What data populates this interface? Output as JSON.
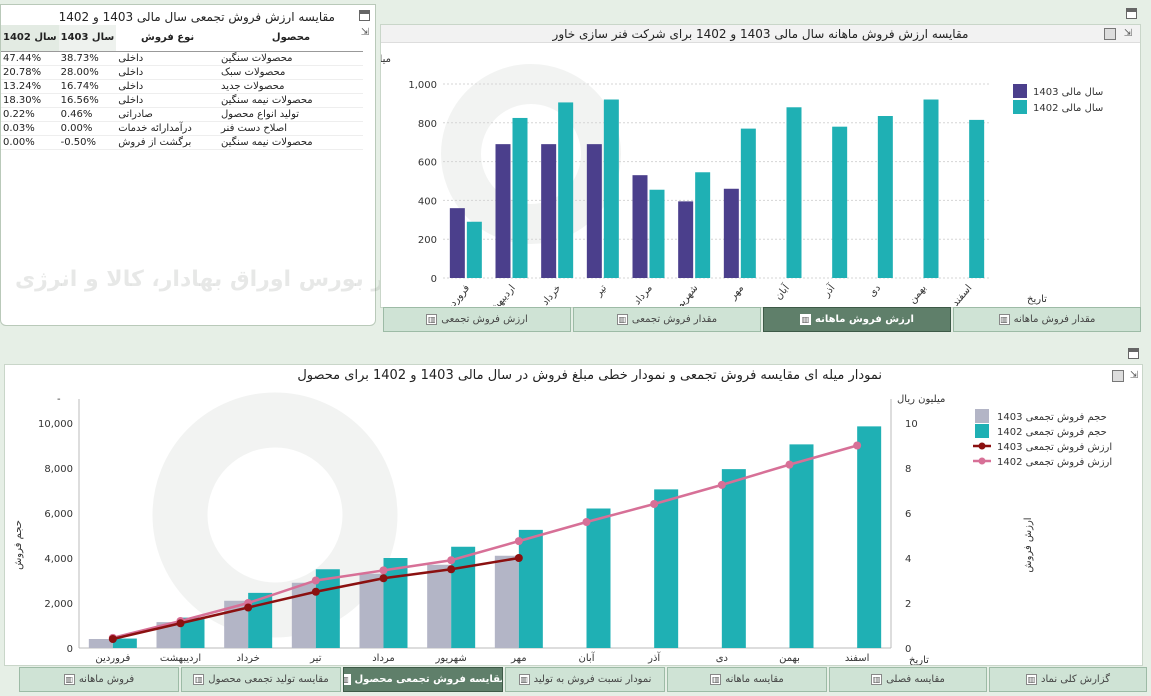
{
  "table_panel": {
    "title": "مقایسه ارزش فروش تجمعی سال مالی 1403 و 1402",
    "columns": {
      "product": "محصول",
      "sale_type": "نوع فروش",
      "year_1403": "سال 1403",
      "year_1402": "سال 1402"
    },
    "rows": [
      {
        "product": "محصولات سنگین",
        "sale_type": "داخلی",
        "v1403": "38.73%",
        "v1402": "47.44%"
      },
      {
        "product": "محصولات سبک",
        "sale_type": "داخلی",
        "v1403": "28.00%",
        "v1402": "20.78%"
      },
      {
        "product": "محصولات جدید",
        "sale_type": "داخلی",
        "v1403": "16.74%",
        "v1402": "13.24%"
      },
      {
        "product": "محصولات نیمه سنگین",
        "sale_type": "داخلی",
        "v1403": "16.56%",
        "v1402": "18.30%"
      },
      {
        "product": "تولید انواع محصول",
        "sale_type": "صادراتی",
        "v1403": "0.46%",
        "v1402": "0.22%"
      },
      {
        "product": "اصلاح دست فنر",
        "sale_type": "درآمدارائه خدمات",
        "v1403": "0.00%",
        "v1402": "0.03%"
      },
      {
        "product": "محصولات نیمه سنگین",
        "sale_type": "برگشت از فروش",
        "v1403": "-0.50%",
        "v1402": "0.00%"
      }
    ]
  },
  "monthly_panel": {
    "title": "مقایسه ارزش فروش ماهانه سال مالی 1403 و 1402 برای شرکت فنر سازی خاور",
    "tabs": [
      {
        "label": "مقدار فروش ماهانه",
        "active": false
      },
      {
        "label": "ارزش فروش ماهانه",
        "active": true
      },
      {
        "label": "مقدار فروش تجمعی",
        "active": false
      },
      {
        "label": "ارزش فروش تجمعی",
        "active": false
      }
    ]
  },
  "cumulative_panel": {
    "title": "نمودار میله ای مقایسه فروش تجمعی و نمودار خطی مبلغ فروش در سال مالی 1403 و 1402 برای محصول"
  },
  "bottom_tabs": [
    {
      "label": "گزارش کلی نماد",
      "active": false
    },
    {
      "label": "مقایسه فصلی",
      "active": false
    },
    {
      "label": "مقایسه ماهانه",
      "active": false
    },
    {
      "label": "نمودار نسبت فروش به تولید",
      "active": false
    },
    {
      "label": "مقایسه فروش تجمعی محصول",
      "active": true
    },
    {
      "label": "مقایسه تولید تجمعی محصول",
      "active": false
    },
    {
      "label": "فروش ماهانه",
      "active": false
    }
  ],
  "watermark": {
    "text": "کارگزار بورس اوراق بهادار، کالا و انرژی"
  },
  "chart_data": [
    {
      "type": "bar",
      "title": "مقایسه ارزش فروش ماهانه سال مالی 1403 و 1402 برای شرکت فنر سازی خاور",
      "ylabel": "میلیارد ریال",
      "xlabel": "تاریخ",
      "ylim": [
        0,
        1000
      ],
      "yticks": [
        0,
        200,
        400,
        600,
        800,
        1000
      ],
      "ytick_labels": [
        "0",
        "200",
        "400",
        "600",
        "800",
        "1,000"
      ],
      "categories": [
        "فروردین",
        "اردیبهشت",
        "خرداد",
        "تیر",
        "مرداد",
        "شهریور",
        "مهر",
        "آبان",
        "آذر",
        "دی",
        "بهمن",
        "اسفند"
      ],
      "legend_position": "top-right",
      "grid": true,
      "series": [
        {
          "name": "سال مالی 1403",
          "color": "#4b3f8c",
          "values": [
            360,
            690,
            690,
            690,
            530,
            395,
            460,
            null,
            null,
            null,
            null,
            null
          ]
        },
        {
          "name": "سال مالی 1402",
          "color": "#1fb0b4",
          "values": [
            290,
            825,
            905,
            920,
            455,
            545,
            770,
            880,
            780,
            835,
            920,
            815
          ]
        }
      ]
    },
    {
      "type": "bar",
      "title": "نمودار میله ای مقایسه فروش تجمعی و نمودار خطی مبلغ فروش در سال مالی 1403 و 1402 برای محصول",
      "ylabel": "حجم فروش",
      "y2label": "ارزش فروش",
      "y2unit": "میلیون ریال",
      "xlabel": "تاریخ",
      "ylim": [
        0,
        10000
      ],
      "yticks": [
        0,
        2000,
        4000,
        6000,
        8000,
        10000
      ],
      "ytick_labels": [
        "0",
        "2,000",
        "4,000",
        "6,000",
        "8,000",
        "10,000"
      ],
      "y2lim": [
        0,
        10
      ],
      "y2ticks": [
        0,
        2,
        4,
        6,
        8,
        10
      ],
      "categories": [
        "فروردین",
        "اردیبهشت",
        "خرداد",
        "تیر",
        "مرداد",
        "شهریور",
        "مهر",
        "آبان",
        "آذر",
        "دی",
        "بهمن",
        "اسفند"
      ],
      "legend_position": "top-right",
      "grid": false,
      "series": [
        {
          "name": "حجم فروش تجمعی 1403",
          "kind": "bar",
          "color": "#b3b5c6",
          "values": [
            400,
            1150,
            2100,
            2900,
            3300,
            3700,
            4100,
            null,
            null,
            null,
            null,
            null
          ]
        },
        {
          "name": "حجم فروش تجمعی 1402",
          "kind": "bar",
          "color": "#1fb0b4",
          "values": [
            420,
            1350,
            2450,
            3500,
            4000,
            4500,
            5250,
            6200,
            7050,
            7950,
            9050,
            9850
          ]
        },
        {
          "name": "ارزش فروش تجمعی 1403",
          "kind": "line",
          "axis": "y2",
          "color": "#8b1010",
          "values": [
            0.4,
            1.1,
            1.8,
            2.5,
            3.1,
            3.5,
            4.0,
            null,
            null,
            null,
            null,
            null
          ]
        },
        {
          "name": "ارزش فروش تجمعی 1402",
          "kind": "line",
          "axis": "y2",
          "color": "#d77097",
          "values": [
            0.45,
            1.2,
            2.0,
            3.0,
            3.45,
            3.9,
            4.75,
            5.6,
            6.4,
            7.25,
            8.15,
            9.0
          ]
        }
      ]
    }
  ]
}
